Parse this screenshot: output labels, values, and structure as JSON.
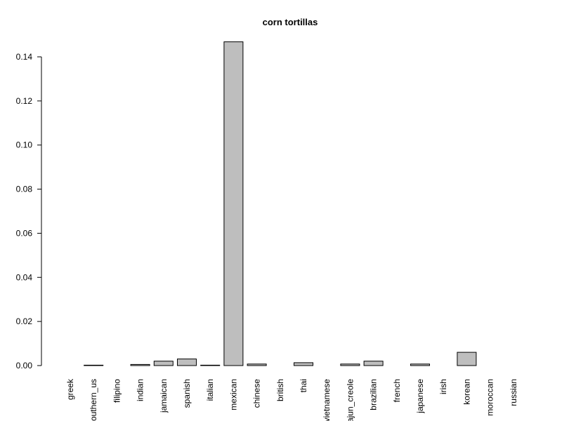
{
  "chart_data": {
    "type": "bar",
    "title": "corn tortillas",
    "xlabel": "",
    "ylabel": "",
    "ylim": [
      0,
      0.14
    ],
    "yticks": [
      0.0,
      0.02,
      0.04,
      0.06,
      0.08,
      0.1,
      0.12,
      0.14
    ],
    "ytick_labels": [
      "0.00",
      "0.02",
      "0.04",
      "0.06",
      "0.08",
      "0.10",
      "0.12",
      "0.14"
    ],
    "grid": false,
    "legend": "none",
    "bar_color": "#bebebe",
    "categories": [
      "greek",
      "southern_us",
      "filipino",
      "indian",
      "jamaican",
      "spanish",
      "italian",
      "mexican",
      "chinese",
      "british",
      "thai",
      "vietnamese",
      "cajun_creole",
      "brazilian",
      "french",
      "japanese",
      "irish",
      "korean",
      "moroccan",
      "russian"
    ],
    "values": [
      0.0,
      0.0002,
      0.0,
      0.0005,
      0.002,
      0.003,
      0.0002,
      0.1468,
      0.0007,
      0.0,
      0.0013,
      0.0,
      0.0007,
      0.002,
      0.0,
      0.0007,
      0.0,
      0.006,
      0.0,
      0.0
    ]
  }
}
